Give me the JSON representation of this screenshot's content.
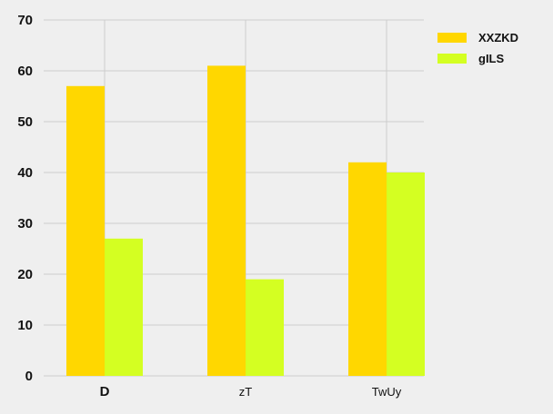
{
  "chart_data": {
    "type": "bar",
    "title": "",
    "xlabel": "",
    "ylabel": "",
    "categories": [
      "D",
      "zT",
      "TwUy"
    ],
    "series": [
      {
        "name": "XXZKD",
        "color": "#ffd700",
        "values": [
          57,
          61,
          42
        ]
      },
      {
        "name": "gILS",
        "color": "#d4ff22",
        "values": [
          27,
          19,
          40
        ]
      }
    ],
    "ylim": [
      0,
      70
    ],
    "yticks": [
      0,
      10,
      20,
      30,
      40,
      50,
      60,
      70
    ],
    "grid": true,
    "legend_position": "top-right",
    "background": "#efefef",
    "grid_color": "#cccccc"
  }
}
